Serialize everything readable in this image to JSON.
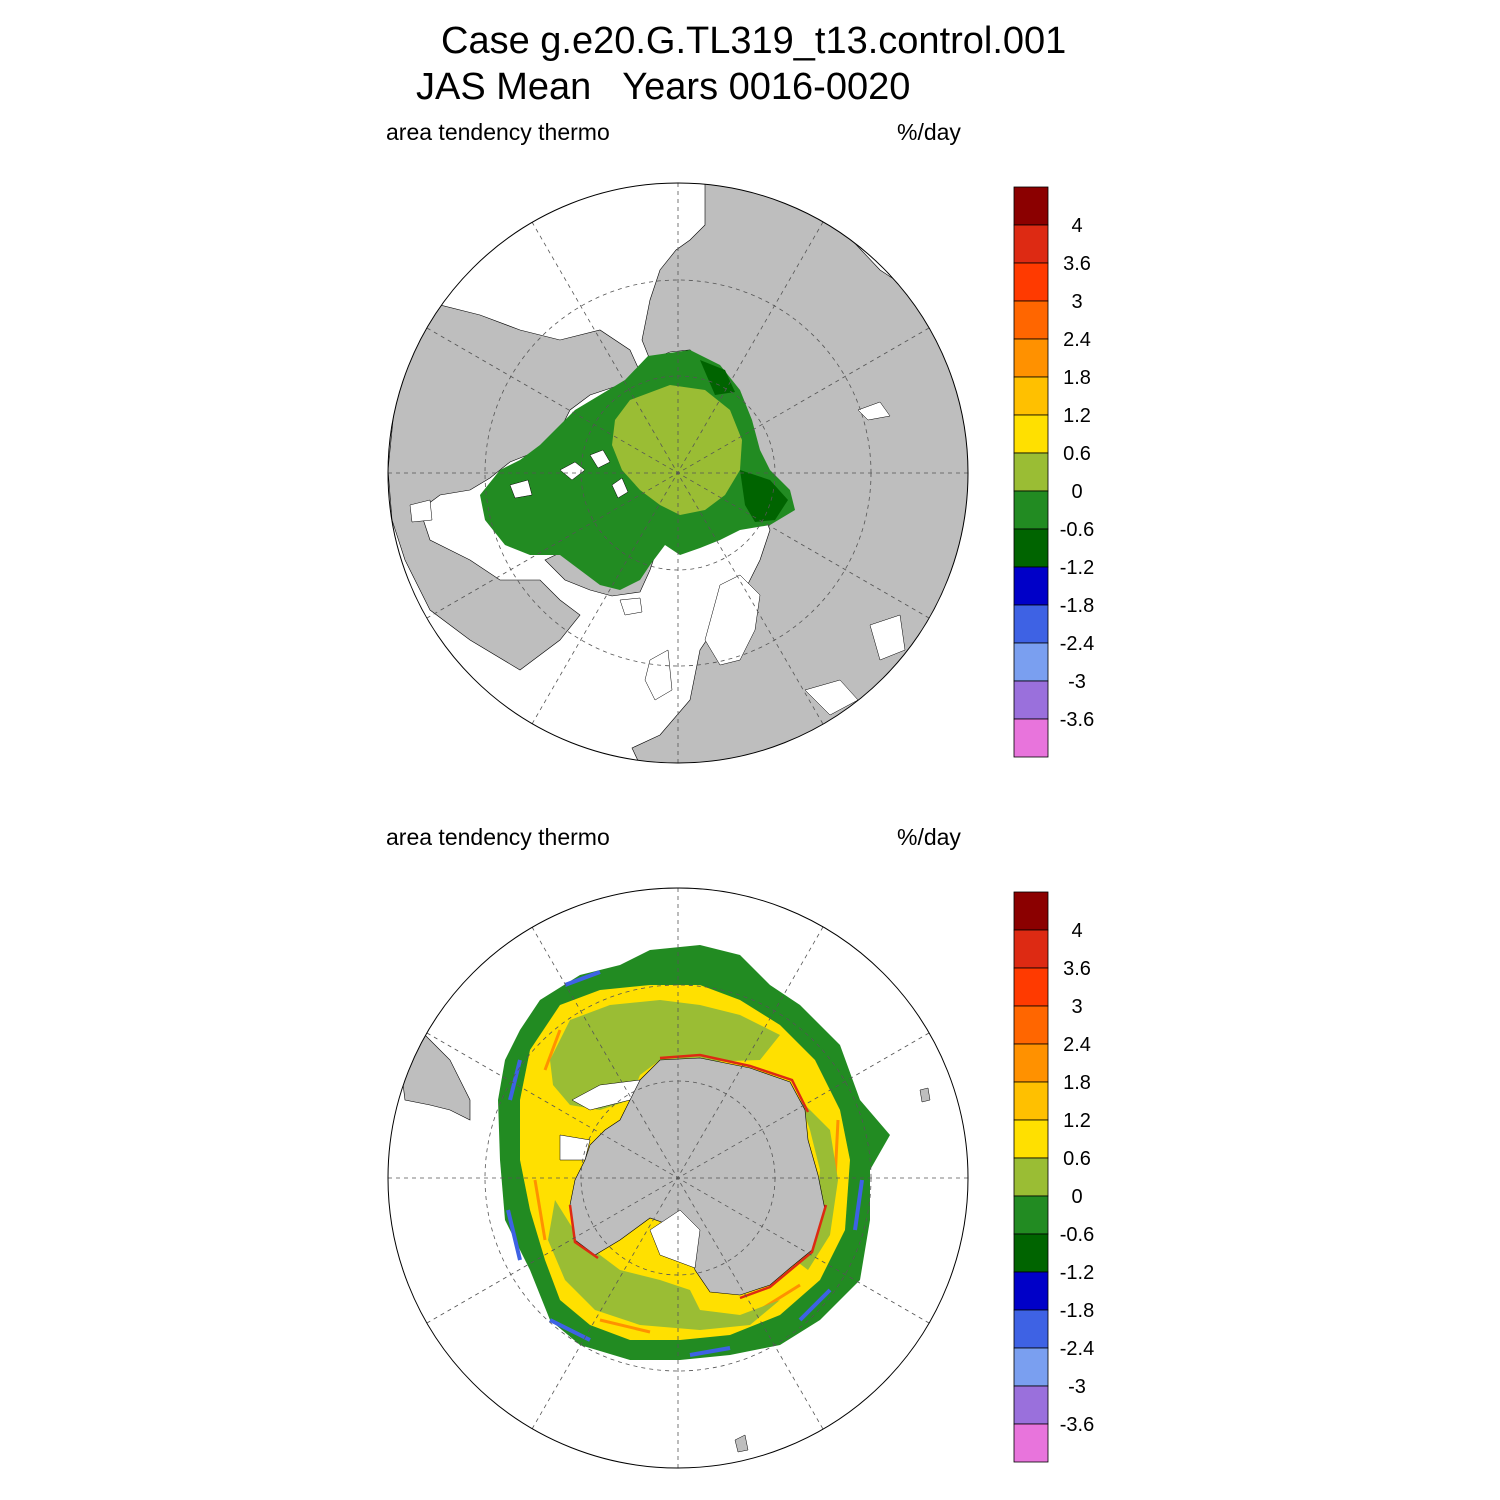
{
  "title": {
    "line1": "Case g.e20.G.TL319_t13.control.001",
    "line2": "JAS Mean   Years 0016-0020"
  },
  "panels": [
    {
      "id": "north",
      "hemisphere": "north-polar-stereographic",
      "variable_label": "area tendency thermo",
      "units_label": "%/day"
    },
    {
      "id": "south",
      "hemisphere": "south-polar-stereographic",
      "variable_label": "area tendency thermo",
      "units_label": "%/day"
    }
  ],
  "colorbar": {
    "labels": [
      "4",
      "3.6",
      "3",
      "2.4",
      "1.8",
      "1.2",
      "0.6",
      "0",
      "-0.6",
      "-1.2",
      "-1.8",
      "-2.4",
      "-3",
      "-3.6"
    ],
    "colors": [
      "#8b0000",
      "#dd2a13",
      "#ff3a00",
      "#ff6600",
      "#ff9100",
      "#ffc000",
      "#ffe000",
      "#9abd34",
      "#228b22",
      "#006400",
      "#0000c8",
      "#3e62e4",
      "#7a9ff0",
      "#9a70dc",
      "#e874dc"
    ]
  },
  "map_colors": {
    "land": "#bebebe",
    "no_data": "#ffffff",
    "outline": "#000000"
  }
}
